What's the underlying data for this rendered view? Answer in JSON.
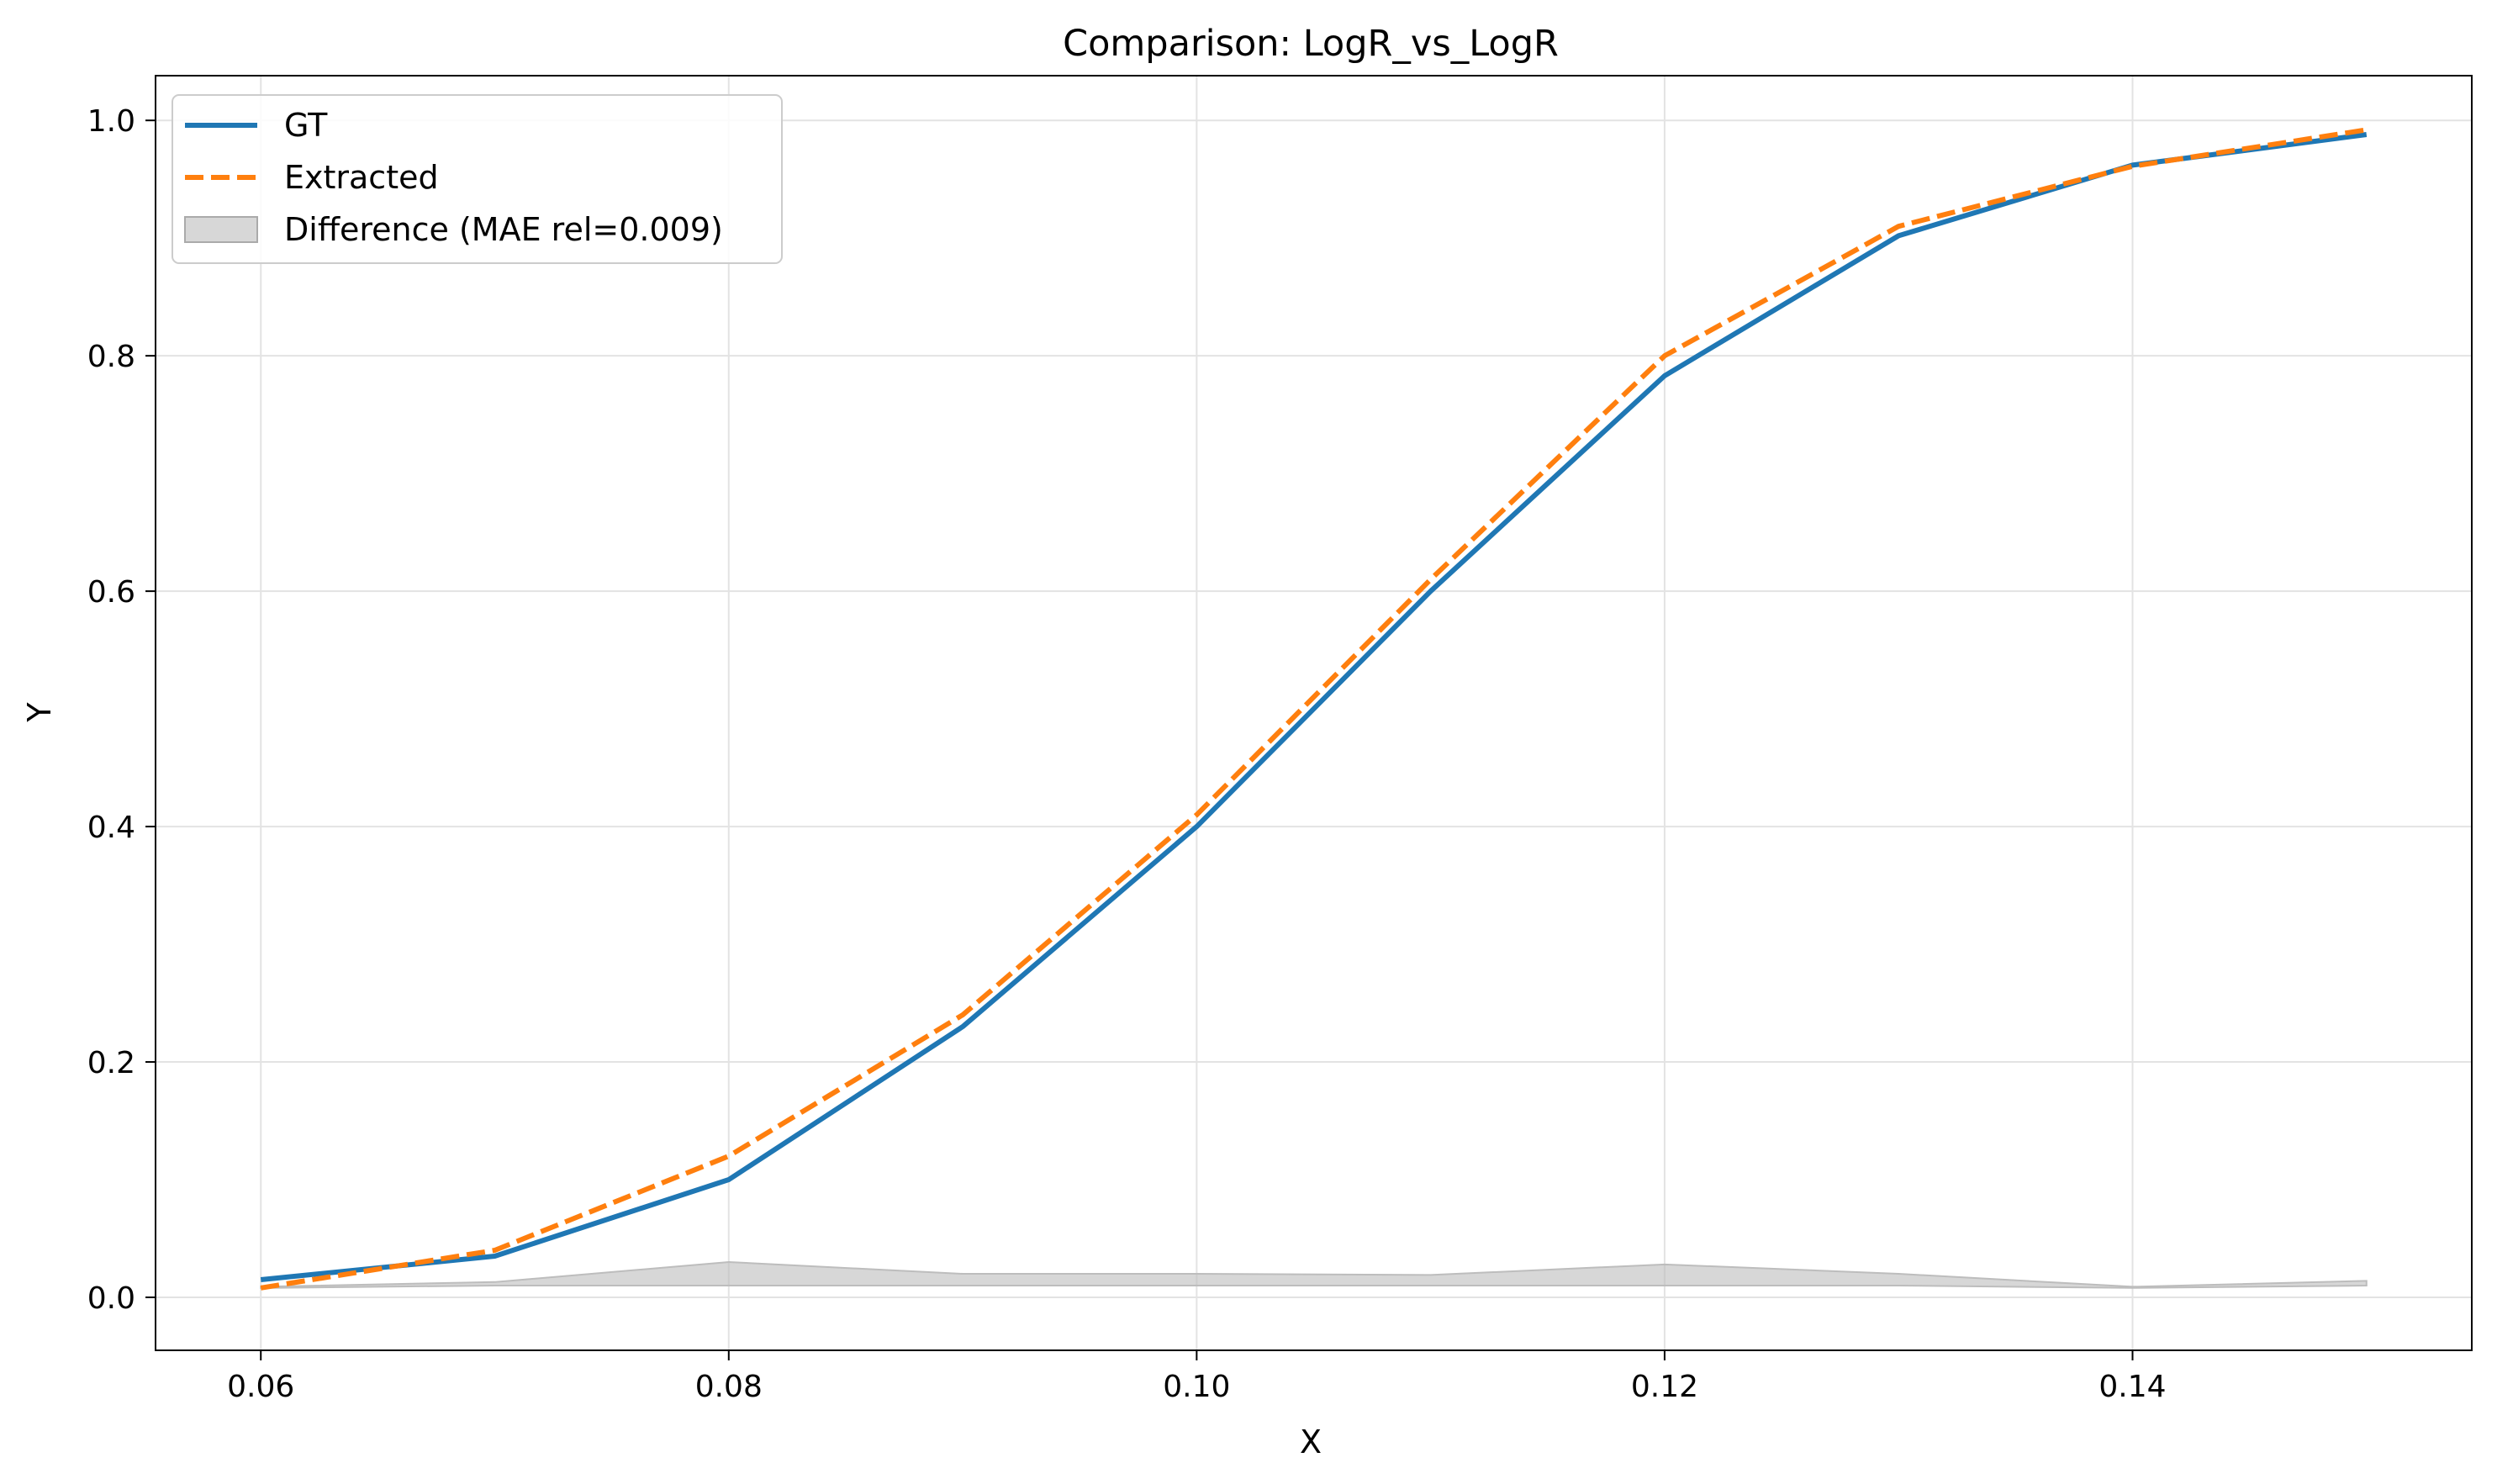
{
  "chart_data": {
    "type": "line",
    "title": "Comparison: LogR_vs_LogR",
    "xlabel": "X",
    "ylabel": "Y",
    "xlim": [
      0.0555,
      0.1545
    ],
    "ylim": [
      -0.045,
      1.038
    ],
    "x_ticks": [
      0.06,
      0.08,
      0.1,
      0.12,
      0.14
    ],
    "x_tick_labels": [
      "0.06",
      "0.08",
      "0.10",
      "0.12",
      "0.14"
    ],
    "y_ticks": [
      0.0,
      0.2,
      0.4,
      0.6,
      0.8,
      1.0
    ],
    "y_tick_labels": [
      "0.0",
      "0.2",
      "0.4",
      "0.6",
      "0.8",
      "1.0"
    ],
    "grid": true,
    "legend_position": "top-left",
    "x": [
      0.06,
      0.07,
      0.08,
      0.09,
      0.1,
      0.11,
      0.12,
      0.13,
      0.14,
      0.15
    ],
    "series": [
      {
        "name": "GT",
        "color": "#1f77b4",
        "style": "solid",
        "values": [
          0.015,
          0.035,
          0.1,
          0.23,
          0.4,
          0.6,
          0.783,
          0.902,
          0.962,
          0.988
        ]
      },
      {
        "name": "Extracted",
        "color": "#ff7f0e",
        "style": "dashed",
        "values": [
          0.008,
          0.04,
          0.12,
          0.24,
          0.41,
          0.61,
          0.8,
          0.91,
          0.961,
          0.992
        ]
      }
    ],
    "difference_band": {
      "name": "Difference (MAE rel=0.009)",
      "color": "#bdbdbd",
      "lower": [
        0.008,
        0.01,
        0.01,
        0.01,
        0.01,
        0.01,
        0.01,
        0.01,
        0.008,
        0.01
      ],
      "upper": [
        0.009,
        0.013,
        0.03,
        0.02,
        0.02,
        0.019,
        0.028,
        0.02,
        0.009,
        0.014
      ]
    }
  }
}
